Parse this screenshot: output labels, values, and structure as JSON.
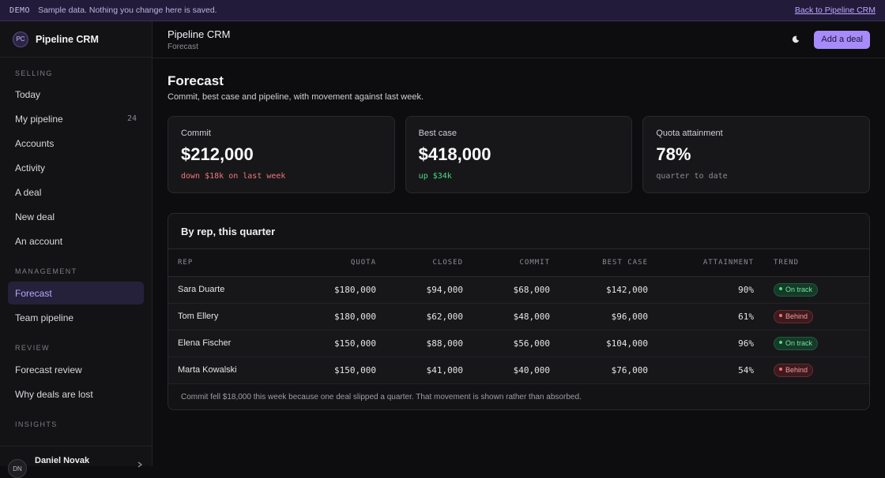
{
  "banner": {
    "tag": "DEMO",
    "message": "Sample data. Nothing you change here is saved.",
    "back_link": "Back to Pipeline CRM"
  },
  "sidebar": {
    "logo": "PC",
    "app_name": "Pipeline CRM",
    "sections": [
      {
        "label": "SELLING",
        "items": [
          {
            "label": "Today"
          },
          {
            "label": "My pipeline",
            "count": "24"
          },
          {
            "label": "Accounts"
          },
          {
            "label": "Activity"
          },
          {
            "label": "A deal"
          },
          {
            "label": "New deal"
          },
          {
            "label": "An account"
          }
        ]
      },
      {
        "label": "MANAGEMENT",
        "items": [
          {
            "label": "Forecast",
            "active": true
          },
          {
            "label": "Team pipeline"
          }
        ]
      },
      {
        "label": "REVIEW",
        "items": [
          {
            "label": "Forecast review"
          },
          {
            "label": "Why deals are lost"
          }
        ]
      },
      {
        "label": "INSIGHTS",
        "items": []
      }
    ],
    "user": {
      "initials": "DN",
      "name": "Daniel Novak"
    }
  },
  "header": {
    "title": "Pipeline CRM",
    "breadcrumb": "Forecast",
    "add_button": "Add a deal",
    "theme_icon": "moon-icon"
  },
  "page": {
    "title": "Forecast",
    "subtitle": "Commit, best case and pipeline, with movement against last week."
  },
  "cards": [
    {
      "label": "Commit",
      "value": "$212,000",
      "delta": "down $18k on last week",
      "tone": "down"
    },
    {
      "label": "Best case",
      "value": "$418,000",
      "delta": "up $34k",
      "tone": "up"
    },
    {
      "label": "Quota attainment",
      "value": "78%",
      "delta": "quarter to date",
      "tone": "neutral"
    }
  ],
  "table": {
    "title": "By rep, this quarter",
    "columns": [
      "REP",
      "QUOTA",
      "CLOSED",
      "COMMIT",
      "BEST CASE",
      "ATTAINMENT",
      "TREND"
    ],
    "rows": [
      {
        "rep": "Sara Duarte",
        "quota": "$180,000",
        "closed": "$94,000",
        "commit": "$68,000",
        "best_case": "$142,000",
        "attainment": "90%",
        "trend": "On track",
        "status": "on"
      },
      {
        "rep": "Tom Ellery",
        "quota": "$180,000",
        "closed": "$62,000",
        "commit": "$48,000",
        "best_case": "$96,000",
        "attainment": "61%",
        "trend": "Behind",
        "status": "behind"
      },
      {
        "rep": "Elena Fischer",
        "quota": "$150,000",
        "closed": "$88,000",
        "commit": "$56,000",
        "best_case": "$104,000",
        "attainment": "96%",
        "trend": "On track",
        "status": "on"
      },
      {
        "rep": "Marta Kowalski",
        "quota": "$150,000",
        "closed": "$41,000",
        "commit": "$40,000",
        "best_case": "$76,000",
        "attainment": "54%",
        "trend": "Behind",
        "status": "behind"
      }
    ],
    "note": "Commit fell $18,000 this week because one deal slipped a quarter. That movement is shown rather than absorbed."
  },
  "colors": {
    "accent": "#a78bfa",
    "positive": "#4ade80",
    "negative": "#f2767a",
    "banner_bg": "#231b3a"
  }
}
